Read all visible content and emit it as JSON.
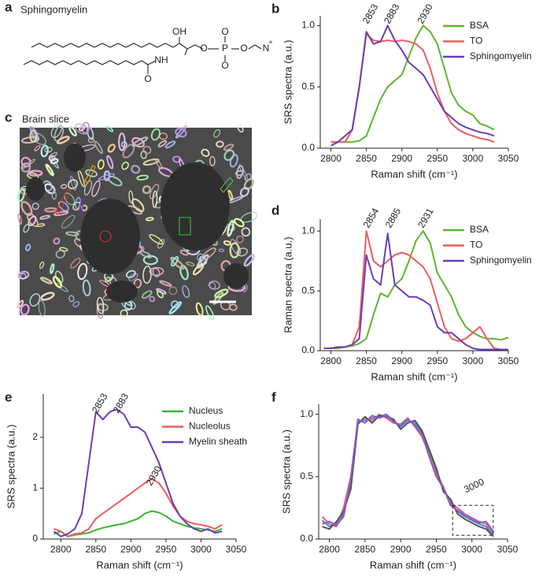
{
  "panels": [
    {
      "label": "a",
      "title": "Sphingomyelin"
    },
    {
      "label": "c",
      "title": "Brain slice"
    }
  ],
  "structure": {
    "atoms": [
      "OH",
      "O",
      "P",
      "O",
      "O",
      "O",
      "N",
      "+",
      "NH",
      "O"
    ]
  },
  "chart_data": [
    {
      "type": "line",
      "panel": "b",
      "x": [
        2800,
        2810,
        2820,
        2830,
        2840,
        2850,
        2860,
        2870,
        2880,
        2890,
        2900,
        2910,
        2920,
        2930,
        2940,
        2950,
        2960,
        2970,
        2980,
        2990,
        3000,
        3010,
        3020,
        3030
      ],
      "series": [
        {
          "name": "BSA",
          "color": "#5cb531",
          "values": [
            0.05,
            0.05,
            0.05,
            0.05,
            0.06,
            0.1,
            0.25,
            0.4,
            0.5,
            0.55,
            0.6,
            0.75,
            0.9,
            1.0,
            0.95,
            0.85,
            0.65,
            0.45,
            0.35,
            0.3,
            0.27,
            0.2,
            0.18,
            0.15
          ]
        },
        {
          "name": "TO",
          "color": "#ee5c5c",
          "values": [
            0.05,
            0.05,
            0.05,
            0.15,
            0.5,
            0.93,
            0.88,
            0.87,
            0.88,
            0.87,
            0.88,
            0.87,
            0.85,
            0.8,
            0.65,
            0.45,
            0.3,
            0.2,
            0.15,
            0.12,
            0.1,
            0.08,
            0.07,
            0.05
          ]
        },
        {
          "name": "Sphingomyelin",
          "color": "#6b3cb8",
          "values": [
            0.02,
            0.05,
            0.1,
            0.15,
            0.5,
            0.95,
            0.85,
            0.87,
            1.0,
            0.88,
            0.8,
            0.7,
            0.65,
            0.6,
            0.5,
            0.4,
            0.3,
            0.25,
            0.2,
            0.17,
            0.15,
            0.13,
            0.12,
            0.1
          ]
        }
      ],
      "xlim": [
        2785,
        3050
      ],
      "ylim": [
        0,
        1.08
      ],
      "xticks": [
        2800,
        2850,
        2900,
        2950,
        3000,
        3050
      ],
      "yticks": [
        {
          "value": 0,
          "label": "0.0"
        },
        {
          "value": 0.5,
          "label": "0.5"
        },
        {
          "value": 1,
          "label": "1.0"
        }
      ],
      "x_label": "Raman shift (cm⁻¹)",
      "y_label": "SRS spectra (a.u.)",
      "annotations": [
        "2853",
        "2883",
        "2930"
      ],
      "legend": "upper right"
    },
    {
      "type": "line",
      "panel": "d",
      "x": [
        2790,
        2800,
        2810,
        2820,
        2830,
        2840,
        2850,
        2860,
        2870,
        2880,
        2890,
        2900,
        2910,
        2920,
        2930,
        2940,
        2950,
        2960,
        2970,
        2980,
        2990,
        3000,
        3010,
        3020,
        3030,
        3040,
        3050
      ],
      "series": [
        {
          "name": "BSA",
          "color": "#5cb531",
          "values": [
            0.02,
            0.02,
            0.02,
            0.03,
            0.04,
            0.06,
            0.1,
            0.3,
            0.48,
            0.45,
            0.55,
            0.6,
            0.75,
            0.92,
            1.0,
            0.9,
            0.65,
            0.55,
            0.45,
            0.3,
            0.2,
            0.15,
            0.12,
            0.1,
            0.1,
            0.09,
            0.11
          ]
        },
        {
          "name": "TO",
          "color": "#ee5c5c",
          "values": [
            0.02,
            0.02,
            0.03,
            0.03,
            0.05,
            0.2,
            1.0,
            0.75,
            0.7,
            0.75,
            0.8,
            0.82,
            0.8,
            0.75,
            0.7,
            0.6,
            0.4,
            0.2,
            0.1,
            0.08,
            0.1,
            0.15,
            0.2,
            0.1,
            0.02,
            0.01,
            0.01
          ]
        },
        {
          "name": "Sphingomyelin",
          "color": "#6b3cb8",
          "values": [
            0.02,
            0.02,
            0.03,
            0.03,
            0.05,
            0.1,
            0.8,
            0.6,
            0.55,
            0.98,
            0.55,
            0.5,
            0.45,
            0.45,
            0.42,
            0.38,
            0.2,
            0.15,
            0.15,
            0.1,
            0.05,
            0.02,
            0.01,
            0.01,
            0.01,
            0.01,
            0.01
          ]
        }
      ],
      "xlim": [
        2785,
        3050
      ],
      "ylim": [
        0,
        1.1
      ],
      "xticks": [
        2800,
        2850,
        2900,
        2950,
        3000,
        3050
      ],
      "yticks": [
        {
          "value": 0,
          "label": "0.0"
        },
        {
          "value": 0.5,
          "label": "0.5"
        },
        {
          "value": 1,
          "label": "1.0"
        }
      ],
      "x_label": "Raman shift (cm⁻¹)",
      "y_label": "Raman spectra (a.u.)",
      "annotations": [
        "2854",
        "2885",
        "2931"
      ],
      "legend": "upper right"
    },
    {
      "type": "line",
      "panel": "e",
      "x": [
        2790,
        2800,
        2810,
        2820,
        2830,
        2840,
        2850,
        2860,
        2870,
        2880,
        2890,
        2900,
        2910,
        2920,
        2930,
        2940,
        2950,
        2960,
        2970,
        2980,
        2990,
        3000,
        3010,
        3020,
        3030
      ],
      "series": [
        {
          "name": "Nucleus",
          "color": "#3cb531",
          "values": [
            0.1,
            0.15,
            0.05,
            0.08,
            0.1,
            0.12,
            0.18,
            0.22,
            0.25,
            0.28,
            0.3,
            0.35,
            0.4,
            0.5,
            0.55,
            0.52,
            0.45,
            0.35,
            0.3,
            0.25,
            0.22,
            0.2,
            0.18,
            0.15,
            0.2
          ]
        },
        {
          "name": "Nucleolus",
          "color": "#ee5c5c",
          "values": [
            0.2,
            0.15,
            0.05,
            0.1,
            0.12,
            0.2,
            0.4,
            0.5,
            0.6,
            0.7,
            0.8,
            0.9,
            1.0,
            1.1,
            1.18,
            1.1,
            0.9,
            0.65,
            0.45,
            0.35,
            0.3,
            0.28,
            0.25,
            0.2,
            0.28
          ]
        },
        {
          "name": "Myelin sheath",
          "color": "#6b3cb8",
          "values": [
            0.15,
            0.05,
            0.1,
            0.2,
            0.5,
            1.5,
            2.5,
            2.35,
            2.5,
            2.55,
            2.45,
            2.2,
            2.2,
            2.1,
            1.8,
            1.5,
            1.1,
            0.7,
            0.45,
            0.3,
            0.2,
            0.15,
            0.2,
            0.12,
            0.15
          ]
        }
      ],
      "xlim": [
        2775,
        3050
      ],
      "ylim": [
        0,
        2.85
      ],
      "xticks": [
        2800,
        2850,
        2900,
        2950,
        3000,
        3050
      ],
      "yticks": [
        0,
        1,
        2
      ],
      "x_label": "Raman shift (cm⁻¹)",
      "y_label": "SRS spectra (a.u.)",
      "annotations": [
        "2853",
        "2883",
        "2930"
      ],
      "legend": "upper right"
    },
    {
      "type": "line",
      "panel": "f",
      "x": [
        2790,
        2800,
        2810,
        2820,
        2830,
        2840,
        2850,
        2860,
        2870,
        2880,
        2890,
        2900,
        2910,
        2920,
        2930,
        2940,
        2950,
        2960,
        2970,
        2980,
        2990,
        3000,
        3010,
        3020,
        3030
      ],
      "series": [
        {
          "color": "#3a8fd0",
          "values": [
            0.15,
            0.1,
            0.12,
            0.2,
            0.45,
            0.95,
            0.95,
            0.97,
            0.98,
            1.0,
            0.95,
            0.9,
            0.95,
            0.93,
            0.85,
            0.7,
            0.55,
            0.4,
            0.3,
            0.22,
            0.18,
            0.15,
            0.12,
            0.1,
            0.03
          ]
        },
        {
          "color": "#e8607a",
          "values": [
            0.18,
            0.12,
            0.1,
            0.25,
            0.5,
            0.93,
            0.97,
            0.95,
            1.0,
            0.97,
            0.93,
            0.92,
            0.97,
            0.9,
            0.82,
            0.68,
            0.52,
            0.42,
            0.28,
            0.25,
            0.2,
            0.17,
            0.14,
            0.12,
            0.05
          ]
        },
        {
          "color": "#555555",
          "values": [
            0.1,
            0.08,
            0.14,
            0.22,
            0.4,
            0.92,
            0.98,
            0.93,
            0.99,
            0.98,
            0.96,
            0.88,
            0.93,
            0.95,
            0.87,
            0.72,
            0.57,
            0.38,
            0.32,
            0.2,
            0.16,
            0.13,
            0.1,
            0.08,
            0.02
          ]
        },
        {
          "color": "#8a5cc8",
          "values": [
            0.12,
            0.14,
            0.11,
            0.18,
            0.48,
            0.96,
            0.93,
            0.99,
            0.97,
            0.99,
            0.94,
            0.91,
            0.96,
            0.91,
            0.84,
            0.66,
            0.5,
            0.41,
            0.27,
            0.23,
            0.19,
            0.16,
            0.13,
            0.14,
            0.06
          ]
        }
      ],
      "xlim": [
        2785,
        3050
      ],
      "ylim": [
        0,
        1.08
      ],
      "xticks": [
        2800,
        2850,
        2900,
        2950,
        3000,
        3050
      ],
      "yticks": [
        {
          "value": 0,
          "label": "0.0"
        },
        {
          "value": 0.5,
          "label": "0.5"
        },
        {
          "value": 1,
          "label": "1.0"
        }
      ],
      "x_label": "Raman shift (cm⁻¹)",
      "y_label": "SRS spectra (a.u.)",
      "annotations": [
        "3000"
      ]
    }
  ]
}
